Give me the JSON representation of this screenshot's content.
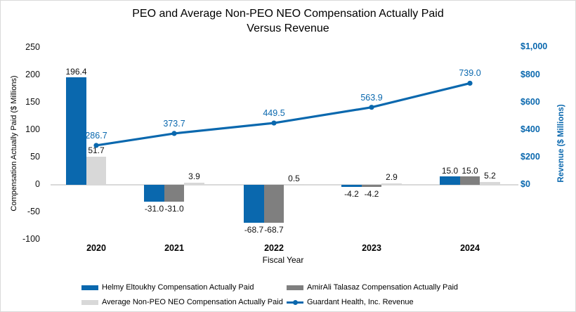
{
  "title": {
    "line1": "PEO and Average Non-PEO NEO Compensation Actually Paid",
    "line2": "Versus Revenue"
  },
  "left_axis": {
    "title": "Compensation Actually Paid ($ Millions)",
    "ticks": [
      "250",
      "200",
      "150",
      "100",
      "50",
      "0",
      "-50",
      "-100"
    ],
    "min": -100,
    "max": 250
  },
  "right_axis": {
    "title": "Revenue ($ Millions)",
    "ticks": [
      "$1,000",
      "$800",
      "$600",
      "$400",
      "$200",
      "$0"
    ],
    "min": 0,
    "max": 1000
  },
  "x_axis": {
    "title": "Fiscal Year",
    "categories": [
      "2020",
      "2021",
      "2022",
      "2023",
      "2024"
    ]
  },
  "colors": {
    "blue": "#0a68ae",
    "gray": "#7f7f7f",
    "light_gray": "#d8d8d8",
    "axis_line": "#dadada",
    "text": "#111111"
  },
  "chart_data": {
    "type": "combo bar+line",
    "title": "PEO and Average Non-PEO NEO Compensation Actually Paid Versus Revenue",
    "categories": [
      "2020",
      "2021",
      "2022",
      "2023",
      "2024"
    ],
    "xlabel": "Fiscal Year",
    "ylabel_left": "Compensation Actually Paid ($ Millions)",
    "ylabel_right": "Revenue ($ Millions)",
    "ylim_left": [
      -100,
      250
    ],
    "ylim_right": [
      0,
      1000
    ],
    "gridlines": false,
    "legend_position": "bottom",
    "series": [
      {
        "key": "helmy-eltoukhy",
        "name": "Helmy Eltoukhy Compensation Actually Paid",
        "type": "bar",
        "color_key": "blue",
        "axis": "left",
        "values": [
          196.4,
          -31.0,
          -68.7,
          -4.2,
          15.0
        ]
      },
      {
        "key": "amirali-talasaz",
        "name": "AmirAli Talasaz Compensation Actually Paid",
        "type": "bar",
        "color_key": "gray",
        "axis": "left",
        "values": [
          null,
          -31.0,
          -68.7,
          -4.2,
          15.0
        ]
      },
      {
        "key": "average-non-peo-neo",
        "name": "Average Non-PEO NEO Compensation Actually Paid",
        "type": "bar",
        "color_key": "light_gray",
        "axis": "left",
        "values": [
          51.7,
          3.9,
          0.5,
          2.9,
          5.2
        ]
      },
      {
        "key": "guardant-revenue",
        "name": "Guardant Health, Inc. Revenue",
        "type": "line",
        "color_key": "blue",
        "axis": "right",
        "values": [
          286.7,
          373.7,
          449.5,
          563.9,
          739.0
        ]
      }
    ]
  },
  "legend": {
    "items": [
      {
        "key": "helmy-eltoukhy",
        "label": "Helmy Eltoukhy Compensation Actually Paid",
        "swatch": "bar",
        "color_key": "blue"
      },
      {
        "key": "amirali-talasaz",
        "label": "AmirAli Talasaz Compensation Actually Paid",
        "swatch": "bar",
        "color_key": "gray"
      },
      {
        "key": "average-non-peo-neo",
        "label": "Average Non-PEO NEO Compensation Actually Paid",
        "swatch": "bar",
        "color_key": "light_gray"
      },
      {
        "key": "guardant-revenue",
        "label": "Guardant Health, Inc. Revenue",
        "swatch": "line",
        "color_key": "blue"
      }
    ]
  }
}
